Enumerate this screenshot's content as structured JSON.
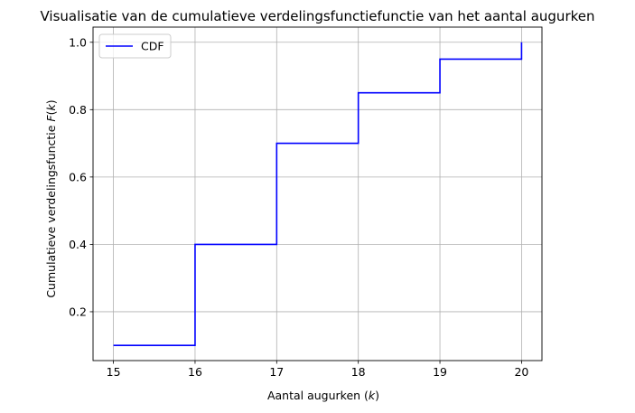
{
  "chart_data": {
    "type": "line",
    "title": "Visualisatie van de cumulatieve verdelingsfunctiefunctie van het aantal augurken",
    "xlabel": "Aantal augurken (",
    "xlabel_var": "k",
    "xlabel_end": ")",
    "ylabel": "Cumulatieve verdelingsfunctie ",
    "ylabel_var": "F",
    "ylabel_paren": "(",
    "ylabel_var2": "k",
    "ylabel_end": ")",
    "xlim": [
      14.75,
      20.25
    ],
    "ylim": [
      0.055,
      1.045
    ],
    "xticks": [
      15,
      16,
      17,
      18,
      19,
      20
    ],
    "yticks": [
      0.2,
      0.4,
      0.6,
      0.8,
      1.0
    ],
    "ytick_labels": [
      "0.2",
      "0.4",
      "0.6",
      "0.8",
      "1.0"
    ],
    "grid": true,
    "legend_position": "top-left",
    "series": [
      {
        "name": "CDF",
        "color": "#0000ff",
        "step": "post",
        "x": [
          15,
          16,
          17,
          18,
          19,
          20
        ],
        "y": [
          0.1,
          0.4,
          0.7,
          0.85,
          0.95,
          1.0
        ]
      }
    ]
  }
}
